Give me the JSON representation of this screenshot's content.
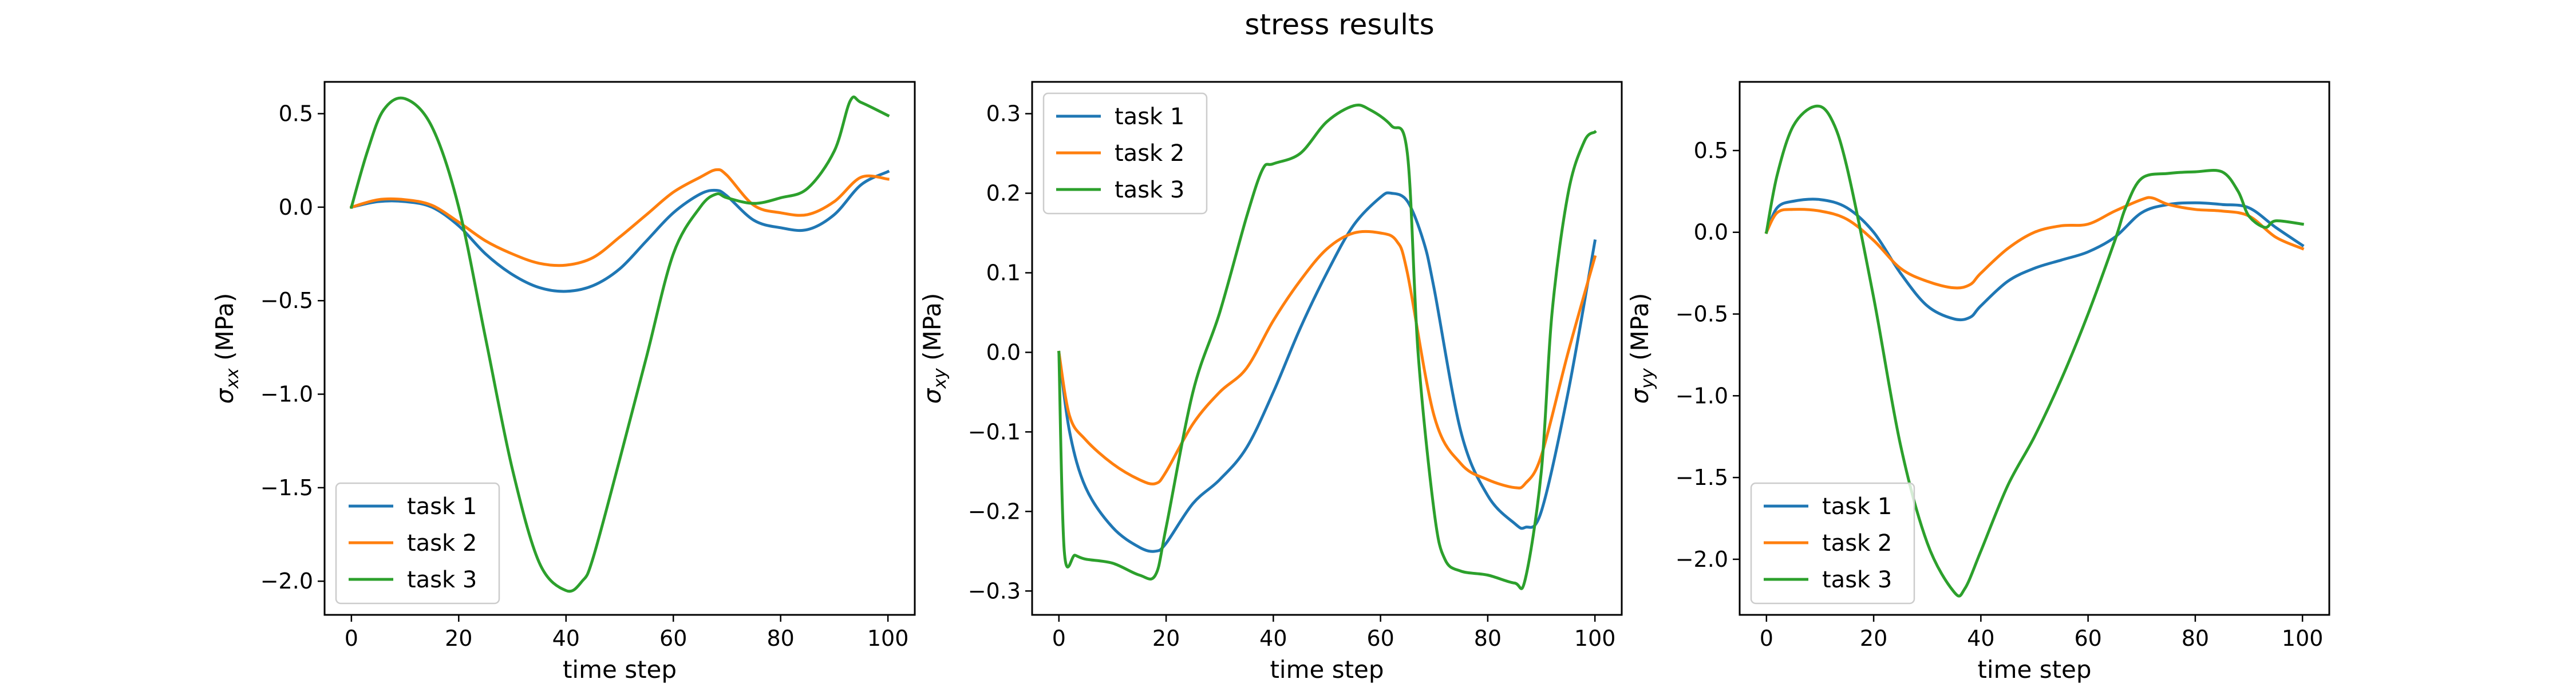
{
  "suptitle": "stress results",
  "chart_data": [
    {
      "type": "line",
      "xlabel": "time step",
      "ylabel_base": "σ",
      "ylabel_sub": "xx",
      "ylabel_unit": " (MPa)",
      "xlim": [
        -5,
        105
      ],
      "ylim": [
        -2.18,
        0.67
      ],
      "xticks": [
        0,
        20,
        40,
        60,
        80,
        100
      ],
      "xtick_labels": [
        "0",
        "20",
        "40",
        "60",
        "80",
        "100"
      ],
      "yticks": [
        -2.0,
        -1.5,
        -1.0,
        -0.5,
        0.0,
        0.5
      ],
      "ytick_labels": [
        "−2.0",
        "−1.5",
        "−1.0",
        "−0.5",
        "0.0",
        "0.5"
      ],
      "legend_loc": "lower left",
      "series": [
        {
          "name": "task 1",
          "color": "#1f77b4",
          "x": [
            0,
            5,
            10,
            15,
            20,
            25,
            30,
            35,
            40,
            45,
            50,
            55,
            60,
            65,
            68,
            70,
            75,
            80,
            85,
            90,
            95,
            100
          ],
          "y": [
            0.0,
            0.03,
            0.03,
            0.0,
            -0.1,
            -0.25,
            -0.36,
            -0.43,
            -0.45,
            -0.42,
            -0.33,
            -0.18,
            -0.03,
            0.07,
            0.09,
            0.06,
            -0.07,
            -0.11,
            -0.12,
            -0.04,
            0.12,
            0.19
          ]
        },
        {
          "name": "task 2",
          "color": "#ff7f0e",
          "x": [
            0,
            5,
            10,
            15,
            20,
            25,
            30,
            35,
            40,
            45,
            50,
            55,
            60,
            65,
            68,
            70,
            75,
            80,
            85,
            90,
            95,
            100
          ],
          "y": [
            0.0,
            0.04,
            0.04,
            0.01,
            -0.08,
            -0.18,
            -0.25,
            -0.3,
            -0.31,
            -0.27,
            -0.16,
            -0.04,
            0.08,
            0.16,
            0.2,
            0.17,
            0.01,
            -0.03,
            -0.04,
            0.03,
            0.16,
            0.15
          ]
        },
        {
          "name": "task 3",
          "color": "#2ca02c",
          "x": [
            0,
            3,
            6,
            10,
            15,
            20,
            25,
            30,
            35,
            40,
            43,
            45,
            50,
            55,
            60,
            65,
            68,
            70,
            75,
            80,
            85,
            90,
            93,
            95,
            100
          ],
          "y": [
            0.0,
            0.3,
            0.52,
            0.58,
            0.43,
            0.0,
            -0.7,
            -1.4,
            -1.9,
            -2.05,
            -2.0,
            -1.88,
            -1.35,
            -0.8,
            -0.25,
            0.0,
            0.07,
            0.05,
            0.02,
            0.05,
            0.1,
            0.3,
            0.57,
            0.56,
            0.49
          ]
        }
      ]
    },
    {
      "type": "line",
      "xlabel": "time step",
      "ylabel_base": "σ",
      "ylabel_sub": "xy",
      "ylabel_unit": " (MPa)",
      "xlim": [
        -5,
        105
      ],
      "ylim": [
        -0.33,
        0.34
      ],
      "xticks": [
        0,
        20,
        40,
        60,
        80,
        100
      ],
      "xtick_labels": [
        "0",
        "20",
        "40",
        "60",
        "80",
        "100"
      ],
      "yticks": [
        -0.3,
        -0.2,
        -0.1,
        0.0,
        0.1,
        0.2,
        0.3
      ],
      "ytick_labels": [
        "−0.3",
        "−0.2",
        "−0.1",
        "0.0",
        "0.1",
        "0.2",
        "0.3"
      ],
      "legend_loc": "upper left",
      "series": [
        {
          "name": "task 1",
          "color": "#1f77b4",
          "x": [
            0,
            2,
            5,
            10,
            15,
            18,
            20,
            25,
            30,
            35,
            40,
            45,
            50,
            55,
            60,
            62,
            65,
            68,
            70,
            75,
            80,
            85,
            87,
            90,
            95,
            100
          ],
          "y": [
            0.0,
            -0.1,
            -0.17,
            -0.22,
            -0.245,
            -0.25,
            -0.24,
            -0.19,
            -0.16,
            -0.12,
            -0.05,
            0.03,
            0.1,
            0.16,
            0.195,
            0.2,
            0.19,
            0.14,
            0.08,
            -0.1,
            -0.18,
            -0.215,
            -0.22,
            -0.2,
            -0.05,
            0.14
          ]
        },
        {
          "name": "task 2",
          "color": "#ff7f0e",
          "x": [
            0,
            2,
            5,
            10,
            15,
            18,
            20,
            25,
            30,
            35,
            40,
            45,
            50,
            55,
            60,
            63,
            65,
            70,
            75,
            80,
            85,
            87,
            90,
            95,
            100
          ],
          "y": [
            0.0,
            -0.08,
            -0.11,
            -0.14,
            -0.16,
            -0.165,
            -0.15,
            -0.09,
            -0.05,
            -0.02,
            0.04,
            0.09,
            0.13,
            0.15,
            0.15,
            0.14,
            0.1,
            -0.08,
            -0.14,
            -0.16,
            -0.17,
            -0.165,
            -0.13,
            0.0,
            0.12
          ]
        },
        {
          "name": "task 3",
          "color": "#2ca02c",
          "x": [
            0,
            1,
            3,
            5,
            10,
            15,
            18,
            20,
            25,
            30,
            35,
            38,
            40,
            45,
            50,
            55,
            58,
            62,
            65,
            67,
            70,
            72,
            75,
            80,
            85,
            87,
            90,
            92,
            95,
            98,
            100
          ],
          "y": [
            0.0,
            -0.25,
            -0.255,
            -0.26,
            -0.265,
            -0.28,
            -0.28,
            -0.22,
            -0.05,
            0.05,
            0.17,
            0.23,
            0.237,
            0.25,
            0.29,
            0.31,
            0.305,
            0.285,
            0.25,
            0.0,
            -0.2,
            -0.26,
            -0.275,
            -0.28,
            -0.29,
            -0.285,
            -0.15,
            0.05,
            0.2,
            0.265,
            0.277
          ]
        }
      ]
    },
    {
      "type": "line",
      "xlabel": "time step",
      "ylabel_base": "σ",
      "ylabel_sub": "yy",
      "ylabel_unit": " (MPa)",
      "xlim": [
        -5,
        105
      ],
      "ylim": [
        -2.34,
        0.92
      ],
      "xticks": [
        0,
        20,
        40,
        60,
        80,
        100
      ],
      "xtick_labels": [
        "0",
        "20",
        "40",
        "60",
        "80",
        "100"
      ],
      "yticks": [
        -2.0,
        -1.5,
        -1.0,
        -0.5,
        0.0,
        0.5
      ],
      "ytick_labels": [
        "−2.0",
        "−1.5",
        "−1.0",
        "−0.5",
        "0.0",
        "0.5"
      ],
      "legend_loc": "lower left",
      "series": [
        {
          "name": "task 1",
          "color": "#1f77b4",
          "x": [
            0,
            2,
            5,
            10,
            15,
            20,
            25,
            30,
            35,
            38,
            40,
            45,
            50,
            55,
            60,
            65,
            70,
            75,
            80,
            85,
            90,
            95,
            100
          ],
          "y": [
            0.0,
            0.15,
            0.19,
            0.2,
            0.15,
            0.0,
            -0.25,
            -0.45,
            -0.53,
            -0.52,
            -0.45,
            -0.3,
            -0.22,
            -0.17,
            -0.12,
            -0.03,
            0.12,
            0.17,
            0.18,
            0.17,
            0.15,
            0.03,
            -0.08
          ]
        },
        {
          "name": "task 2",
          "color": "#ff7f0e",
          "x": [
            0,
            2,
            5,
            10,
            15,
            20,
            25,
            30,
            35,
            38,
            40,
            45,
            50,
            55,
            60,
            65,
            70,
            72,
            75,
            80,
            85,
            90,
            95,
            100
          ],
          "y": [
            0.0,
            0.12,
            0.14,
            0.13,
            0.08,
            -0.05,
            -0.22,
            -0.3,
            -0.34,
            -0.32,
            -0.25,
            -0.1,
            0.0,
            0.04,
            0.05,
            0.13,
            0.2,
            0.21,
            0.17,
            0.14,
            0.13,
            0.1,
            -0.03,
            -0.1
          ]
        },
        {
          "name": "task 3",
          "color": "#2ca02c",
          "x": [
            0,
            2,
            5,
            9,
            12,
            15,
            20,
            25,
            30,
            35,
            37,
            40,
            45,
            50,
            55,
            60,
            65,
            67,
            70,
            75,
            80,
            85,
            88,
            90,
            93,
            95,
            100
          ],
          "y": [
            0.0,
            0.35,
            0.65,
            0.77,
            0.7,
            0.4,
            -0.4,
            -1.3,
            -1.9,
            -2.2,
            -2.18,
            -1.95,
            -1.55,
            -1.25,
            -0.9,
            -0.5,
            -0.05,
            0.15,
            0.33,
            0.36,
            0.37,
            0.37,
            0.25,
            0.1,
            0.03,
            0.07,
            0.05
          ]
        }
      ]
    }
  ]
}
